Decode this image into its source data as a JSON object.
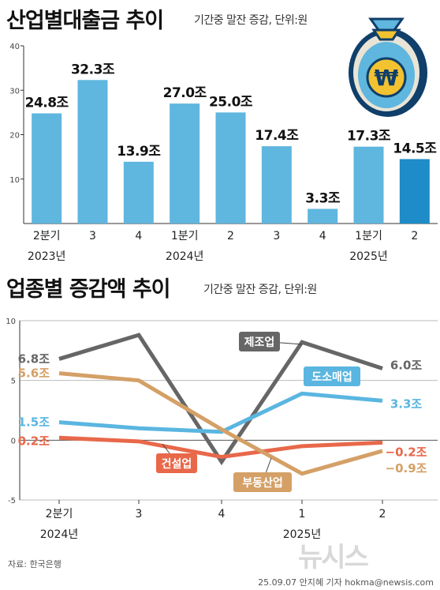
{
  "header1": {
    "title": "산업별대출금 추이",
    "subtitle": "기간중 말잔 증감, 단위:원"
  },
  "header2": {
    "title": "업종별 증감액 추이",
    "subtitle": "기간중 말잔 증감, 단위:원"
  },
  "source": "자료: 한국은행",
  "credit": "25.09.07 안지혜 기자 hokma@newsis.com",
  "watermark": "뉴시스",
  "colors": {
    "bar": "#5fb6df",
    "bar_highlight": "#1d8cc8",
    "manufacturing": "#666666",
    "wholesale_retail": "#5ab6e0",
    "construction": "#e8684a",
    "real_estate": "#d4a066"
  },
  "chart_data": [
    {
      "type": "bar",
      "categories": [
        "2분기",
        "3",
        "4",
        "1분기",
        "2",
        "3",
        "4",
        "1분기",
        "2"
      ],
      "year_labels": [
        {
          "index": 0,
          "label": "2023년"
        },
        {
          "index": 3,
          "label": "2024년"
        },
        {
          "index": 7,
          "label": "2025년"
        }
      ],
      "values": [
        24.8,
        32.3,
        13.9,
        27.0,
        25.0,
        17.4,
        3.3,
        17.3,
        14.5
      ],
      "value_labels": [
        "24.8조",
        "32.3조",
        "13.9조",
        "27.0조",
        "25.0조",
        "17.4조",
        "3.3조",
        "17.3조",
        "14.5조"
      ],
      "ylim": [
        0,
        40
      ],
      "yticks": [
        10,
        20,
        30,
        40
      ],
      "highlight_index": 8
    },
    {
      "type": "line",
      "categories": [
        "2분기",
        "3",
        "4",
        "1",
        "2"
      ],
      "year_labels": [
        {
          "index": 0,
          "label": "2024년"
        },
        {
          "index": 3,
          "label": "2025년"
        }
      ],
      "ylim": [
        -5,
        10
      ],
      "yticks": [
        -5,
        0,
        5,
        10
      ],
      "series": [
        {
          "name": "제조업",
          "color_key": "manufacturing",
          "values": [
            6.8,
            8.8,
            -1.8,
            8.2,
            6.0
          ],
          "start_label": "6.8조",
          "end_label": "6.0조"
        },
        {
          "name": "도소매업",
          "color_key": "wholesale_retail",
          "values": [
            1.5,
            1.0,
            0.7,
            3.9,
            3.3
          ],
          "start_label": "1.5조",
          "end_label": "3.3조"
        },
        {
          "name": "건설업",
          "color_key": "construction",
          "values": [
            0.2,
            -0.1,
            -1.4,
            -0.5,
            -0.2
          ],
          "start_label": "0.2조",
          "end_label": "−0.2조"
        },
        {
          "name": "부동산업",
          "color_key": "real_estate",
          "values": [
            5.6,
            5.0,
            0.9,
            -2.8,
            -0.9
          ],
          "start_label": "5.6조",
          "end_label": "−0.9조"
        }
      ]
    }
  ]
}
